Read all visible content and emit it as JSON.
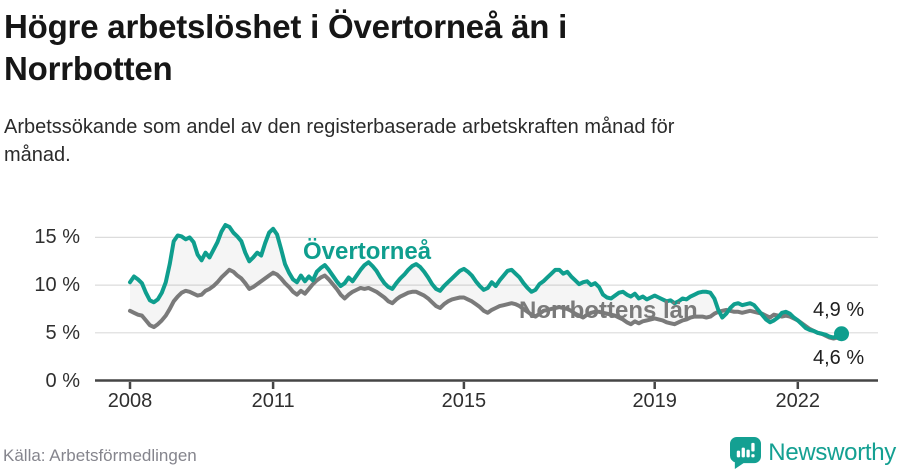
{
  "header": {
    "title": "Högre arbetslöshet i Övertorneå än i Norrbotten",
    "subtitle": "Arbetssökande som andel av den registerbaserade arbetskraften månad för månad."
  },
  "footer": {
    "source": "Källa: Arbetsförmedlingen",
    "brand": "Newsworthy"
  },
  "colors": {
    "accent_teal": "#0f9e8e",
    "gray_line": "#7a7a7a",
    "area_fill": "rgba(110,110,110,0.07)",
    "gridline": "#dcdcdc",
    "axis": "#454545",
    "title_text": "#161616",
    "source_text": "#85858d"
  },
  "chart_data": {
    "type": "line",
    "title": "Högre arbetslöshet i Övertorneå än i Norrbotten",
    "subtitle": "Arbetssökande som andel av den registerbaserade arbetskraften månad för månad.",
    "unit": "%",
    "x_interval": "monthly",
    "x_start": "2008-01",
    "x_end": "2022-12",
    "ylim": [
      0,
      17.5
    ],
    "grid": "horizontal",
    "y_ticks": [
      {
        "label": "15 %",
        "value": 15
      },
      {
        "label": "10 %",
        "value": 10
      },
      {
        "label": "5 %",
        "value": 5
      },
      {
        "label": "0 %",
        "value": 0
      }
    ],
    "x_ticks": [
      {
        "label": "2008",
        "month_index": 0
      },
      {
        "label": "2011",
        "month_index": 36
      },
      {
        "label": "2015",
        "month_index": 84
      },
      {
        "label": "2019",
        "month_index": 132
      },
      {
        "label": "2022",
        "month_index": 168
      }
    ],
    "series": [
      {
        "name": "Övertorneå",
        "color": "#0f9e8e",
        "end_label": "4,9 %",
        "end_value": 4.9,
        "values": [
          10.3,
          10.9,
          10.6,
          10.2,
          9.2,
          8.4,
          8.2,
          8.5,
          9.2,
          10.3,
          12.2,
          14.6,
          15.2,
          15.1,
          14.8,
          15.0,
          14.5,
          13.2,
          12.6,
          13.4,
          12.9,
          13.7,
          14.5,
          15.6,
          16.3,
          16.1,
          15.5,
          15.1,
          14.6,
          13.4,
          12.5,
          12.9,
          13.4,
          13.1,
          14.4,
          15.5,
          15.9,
          15.3,
          13.8,
          12.2,
          11.3,
          10.6,
          10.3,
          11.0,
          10.4,
          10.9,
          10.5,
          11.4,
          11.8,
          12.1,
          11.6,
          11.0,
          10.4,
          9.9,
          10.2,
          10.8,
          10.4,
          11.0,
          11.6,
          12.1,
          12.4,
          12.0,
          11.5,
          10.8,
          10.2,
          9.8,
          9.6,
          10.2,
          10.7,
          11.1,
          11.6,
          12.0,
          12.2,
          11.9,
          11.4,
          10.8,
          10.1,
          9.6,
          9.4,
          9.9,
          10.3,
          10.7,
          11.1,
          11.5,
          11.7,
          11.4,
          11.0,
          10.4,
          9.9,
          9.5,
          9.7,
          10.3,
          9.9,
          10.5,
          11.0,
          11.5,
          11.6,
          11.2,
          10.8,
          10.2,
          9.7,
          9.3,
          9.5,
          10.1,
          10.4,
          10.8,
          11.2,
          11.6,
          11.6,
          11.2,
          11.4,
          10.9,
          10.5,
          10.1,
          10.3,
          10.4,
          10.0,
          10.2,
          9.8,
          9.0,
          8.7,
          8.6,
          8.9,
          9.2,
          9.3,
          9.0,
          8.8,
          9.1,
          8.6,
          8.8,
          8.5,
          8.7,
          8.9,
          8.7,
          8.5,
          8.3,
          8.4,
          8.1,
          8.3,
          8.6,
          8.5,
          8.8,
          9.0,
          9.2,
          9.3,
          9.3,
          9.2,
          8.6,
          7.4,
          6.6,
          7.0,
          7.6,
          8.0,
          8.1,
          7.9,
          8.0,
          8.1,
          7.9,
          7.4,
          6.9,
          6.4,
          6.1,
          6.3,
          6.6,
          7.1,
          7.2,
          7.0,
          6.6,
          6.3,
          5.9,
          5.5,
          5.3,
          5.2,
          5.0,
          4.9,
          4.8,
          4.6,
          4.5,
          4.7,
          4.9
        ]
      },
      {
        "name": "Norrbottens län",
        "color": "#7a7a7a",
        "end_label": "4,6 %",
        "end_value": 4.6,
        "values": [
          7.3,
          7.1,
          6.9,
          6.8,
          6.3,
          5.8,
          5.6,
          5.9,
          6.3,
          6.8,
          7.5,
          8.3,
          8.8,
          9.2,
          9.4,
          9.3,
          9.1,
          8.9,
          9.0,
          9.4,
          9.6,
          9.9,
          10.3,
          10.8,
          11.2,
          11.6,
          11.4,
          11.0,
          10.7,
          10.2,
          9.6,
          9.8,
          10.1,
          10.4,
          10.7,
          11.0,
          11.3,
          11.1,
          10.7,
          10.2,
          9.8,
          9.3,
          9.0,
          9.4,
          9.1,
          9.6,
          10.1,
          10.5,
          10.8,
          11.0,
          10.6,
          10.1,
          9.6,
          9.0,
          8.6,
          9.0,
          9.3,
          9.5,
          9.7,
          9.6,
          9.7,
          9.5,
          9.3,
          9.0,
          8.7,
          8.3,
          8.1,
          8.5,
          8.8,
          9.0,
          9.2,
          9.3,
          9.3,
          9.1,
          8.9,
          8.6,
          8.2,
          7.8,
          7.6,
          8.0,
          8.3,
          8.5,
          8.6,
          8.7,
          8.7,
          8.5,
          8.3,
          8.0,
          7.7,
          7.3,
          7.1,
          7.4,
          7.6,
          7.8,
          7.9,
          8.0,
          8.1,
          8.0,
          7.8,
          7.5,
          7.2,
          6.9,
          6.7,
          7.0,
          7.3,
          7.4,
          7.5,
          7.6,
          7.7,
          7.6,
          7.5,
          7.3,
          7.0,
          6.8,
          6.6,
          6.9,
          7.1,
          7.2,
          7.2,
          7.1,
          7.0,
          6.9,
          6.8,
          6.6,
          6.4,
          6.1,
          5.9,
          6.2,
          6.0,
          6.2,
          6.3,
          6.4,
          6.5,
          6.4,
          6.3,
          6.1,
          6.0,
          5.9,
          6.1,
          6.3,
          6.4,
          6.6,
          6.7,
          6.7,
          6.7,
          6.6,
          6.7,
          7.0,
          7.2,
          7.3,
          7.4,
          7.3,
          7.2,
          7.2,
          7.1,
          7.2,
          7.3,
          7.2,
          7.1,
          7.0,
          6.8,
          6.6,
          6.9,
          6.8,
          6.7,
          6.8,
          6.7,
          6.5,
          6.3,
          6.0,
          5.7,
          5.4,
          5.2,
          5.0,
          4.9,
          4.7,
          4.5,
          4.4,
          4.5,
          4.6
        ]
      }
    ],
    "legend_position": "inline-labels"
  }
}
